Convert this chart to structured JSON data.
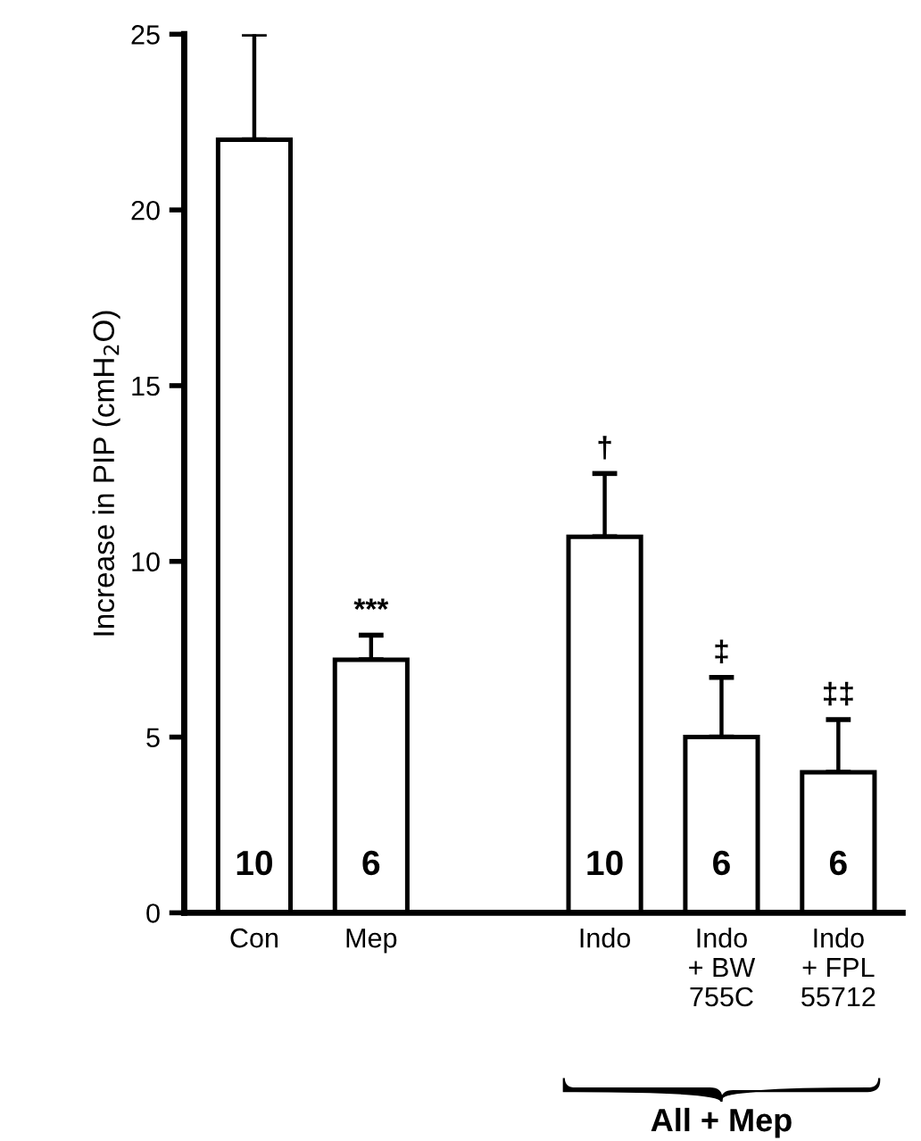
{
  "chart_data": {
    "type": "bar",
    "ylabel": "Increase in PIP (cmH$_{2}$O)",
    "categories": [
      "Con",
      "Mep",
      null,
      "Indo",
      "Indo\n+ BW\n755C",
      "Indo\n+ FPL\n55712"
    ],
    "values": [
      22.0,
      7.2,
      null,
      10.7,
      5.0,
      4.0
    ],
    "errors": [
      [
        22.0,
        25.0
      ],
      [
        7.2,
        7.9
      ],
      null,
      [
        10.7,
        12.5
      ],
      [
        5.0,
        6.7
      ],
      [
        4.0,
        5.5
      ]
    ],
    "color": "#ffffff",
    "ylim": [
      0,
      25
    ],
    "yticks": [
      0,
      5,
      10,
      15,
      20,
      25
    ],
    "grid": false,
    "annotations": [
      "10",
      "6",
      "10",
      "6",
      "6",
      "***",
      "†",
      "‡",
      "‡‡",
      "All + Mep"
    ]
  }
}
